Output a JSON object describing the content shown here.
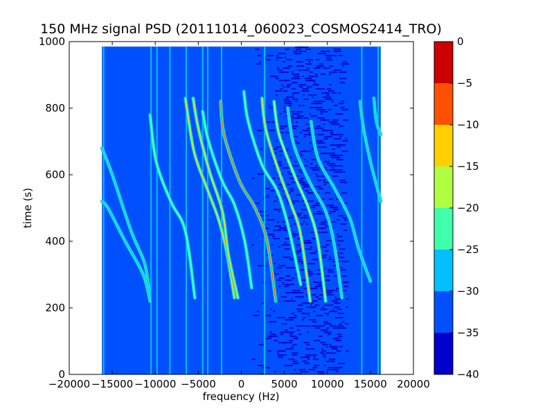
{
  "chart_data": {
    "type": "heatmap",
    "title": "150 MHz signal PSD (20111014_060023_COSMOS2414_TRO)",
    "xlabel": "frequency (Hz)",
    "ylabel": "time (s)",
    "xlim": [
      -20000,
      20000
    ],
    "ylim": [
      0,
      1000
    ],
    "x_ticks": [
      {
        "value": -20000,
        "label": "−20000"
      },
      {
        "value": -15000,
        "label": "−15000"
      },
      {
        "value": -10000,
        "label": "−10000"
      },
      {
        "value": -5000,
        "label": "−5000"
      },
      {
        "value": 0,
        "label": "0"
      },
      {
        "value": 5000,
        "label": "5000"
      },
      {
        "value": 10000,
        "label": "10000"
      },
      {
        "value": 15000,
        "label": "15000"
      },
      {
        "value": 20000,
        "label": "20000"
      }
    ],
    "y_ticks": [
      {
        "value": 0,
        "label": "0"
      },
      {
        "value": 200,
        "label": "200"
      },
      {
        "value": 400,
        "label": "400"
      },
      {
        "value": 600,
        "label": "600"
      },
      {
        "value": 800,
        "label": "800"
      },
      {
        "value": 1000,
        "label": "1000"
      }
    ],
    "data_extent": {
      "x": [
        -16200,
        16200
      ],
      "y": [
        0,
        985
      ]
    },
    "background_level": -33,
    "colorbar": {
      "range": [
        -40,
        0
      ],
      "ticks": [
        {
          "value": 0,
          "label": "0"
        },
        {
          "value": -5,
          "label": "−5"
        },
        {
          "value": -10,
          "label": "−10"
        },
        {
          "value": -15,
          "label": "−15"
        },
        {
          "value": -20,
          "label": "−20"
        },
        {
          "value": -25,
          "label": "−25"
        },
        {
          "value": -30,
          "label": "−30"
        },
        {
          "value": -35,
          "label": "−35"
        },
        {
          "value": -40,
          "label": "−40"
        }
      ],
      "levels": [
        {
          "from": -40,
          "to": -35,
          "color": "#0000cc"
        },
        {
          "from": -35,
          "to": -30,
          "color": "#0050ff"
        },
        {
          "from": -30,
          "to": -25,
          "color": "#00c0ff"
        },
        {
          "from": -25,
          "to": -20,
          "color": "#40ffaa"
        },
        {
          "from": -20,
          "to": -15,
          "color": "#b0ff40"
        },
        {
          "from": -15,
          "to": -10,
          "color": "#ffd000"
        },
        {
          "from": -10,
          "to": -5,
          "color": "#ff5000"
        },
        {
          "from": -5,
          "to": 0,
          "color": "#cc0000"
        }
      ]
    },
    "noise_bands": [
      {
        "x": [
          -1500,
          12500
        ],
        "y": [
          0,
          985
        ],
        "level": -37
      }
    ],
    "vertical_lines": [
      {
        "x": -16000,
        "level": -28
      },
      {
        "x": -10500,
        "level": -27
      },
      {
        "x": -9800,
        "level": -26
      },
      {
        "x": -8300,
        "level": -27
      },
      {
        "x": -6400,
        "level": -28
      },
      {
        "x": -4500,
        "level": -28
      },
      {
        "x": -3900,
        "level": -28
      },
      {
        "x": -2300,
        "level": -27
      },
      {
        "x": 2700,
        "level": -27
      },
      {
        "x": 14000,
        "level": -28
      },
      {
        "x": 15900,
        "level": -27
      }
    ],
    "doppler_tracks": [
      {
        "points": [
          [
            -16200,
            680
          ],
          [
            -15000,
            600
          ],
          [
            -12800,
            430
          ],
          [
            -11200,
            330
          ],
          [
            -10600,
            220
          ]
        ],
        "level": -25
      },
      {
        "points": [
          [
            -16200,
            520
          ],
          [
            -15500,
            500
          ],
          [
            -13500,
            400
          ],
          [
            -11400,
            300
          ],
          [
            -10600,
            220
          ]
        ],
        "level": -25
      },
      {
        "points": [
          [
            -10600,
            780
          ],
          [
            -9900,
            640
          ],
          [
            -8200,
            520
          ],
          [
            -6500,
            430
          ],
          [
            -5400,
            230
          ]
        ],
        "level": -24
      },
      {
        "points": [
          [
            -6500,
            830
          ],
          [
            -5500,
            670
          ],
          [
            -4000,
            560
          ],
          [
            -2700,
            470
          ],
          [
            -1800,
            380
          ],
          [
            -800,
            230
          ]
        ],
        "level": -12
      },
      {
        "points": [
          [
            -5600,
            830
          ],
          [
            -5000,
            740
          ],
          [
            -3700,
            610
          ],
          [
            -2200,
            490
          ],
          [
            -1500,
            360
          ],
          [
            -400,
            230
          ]
        ],
        "level": -14
      },
      {
        "points": [
          [
            -4500,
            790
          ],
          [
            -3800,
            700
          ],
          [
            -2200,
            580
          ],
          [
            -800,
            510
          ],
          [
            400,
            400
          ],
          [
            1200,
            260
          ]
        ],
        "level": -20
      },
      {
        "points": [
          [
            -2400,
            820
          ],
          [
            -2000,
            720
          ],
          [
            -200,
            580
          ],
          [
            1600,
            500
          ],
          [
            3000,
            400
          ],
          [
            4000,
            220
          ]
        ],
        "level": -8
      },
      {
        "points": [
          [
            300,
            850
          ],
          [
            800,
            760
          ],
          [
            2400,
            630
          ],
          [
            4200,
            550
          ],
          [
            5500,
            440
          ],
          [
            6900,
            270
          ]
        ],
        "level": -22
      },
      {
        "points": [
          [
            2400,
            830
          ],
          [
            2900,
            730
          ],
          [
            4500,
            600
          ],
          [
            5800,
            510
          ],
          [
            6900,
            420
          ],
          [
            8000,
            220
          ]
        ],
        "level": -10
      },
      {
        "points": [
          [
            3800,
            820
          ],
          [
            4400,
            720
          ],
          [
            6300,
            590
          ],
          [
            7800,
            500
          ],
          [
            8900,
            400
          ],
          [
            9800,
            220
          ]
        ],
        "level": -18
      },
      {
        "points": [
          [
            5400,
            800
          ],
          [
            6100,
            690
          ],
          [
            7900,
            580
          ],
          [
            9800,
            490
          ],
          [
            10800,
            390
          ],
          [
            11700,
            230
          ]
        ],
        "level": -25
      },
      {
        "points": [
          [
            8100,
            760
          ],
          [
            8900,
            650
          ],
          [
            10800,
            560
          ],
          [
            12600,
            470
          ],
          [
            13600,
            380
          ],
          [
            15000,
            280
          ]
        ],
        "level": -26
      },
      {
        "points": [
          [
            13800,
            820
          ],
          [
            14200,
            740
          ],
          [
            15000,
            640
          ],
          [
            15800,
            560
          ],
          [
            16200,
            520
          ]
        ],
        "level": -25
      },
      {
        "points": [
          [
            15400,
            830
          ],
          [
            15700,
            760
          ],
          [
            16200,
            720
          ]
        ],
        "level": -25
      }
    ]
  }
}
